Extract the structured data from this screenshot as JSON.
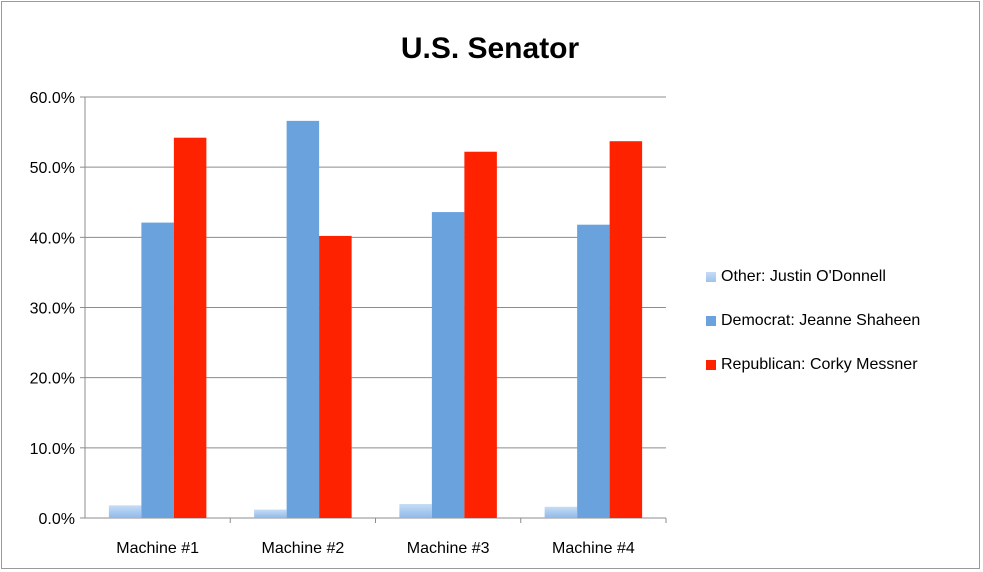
{
  "chart_data": {
    "type": "bar",
    "title": "U.S. Senator",
    "categories": [
      "Machine #1",
      "Machine #2",
      "Machine #3",
      "Machine #4"
    ],
    "series": [
      {
        "name": "Other: Justin O'Donnell",
        "values": [
          1.8,
          1.2,
          2.0,
          1.6
        ],
        "color": "#9dc3ee"
      },
      {
        "name": "Democrat: Jeanne Shaheen",
        "values": [
          42.1,
          56.6,
          43.6,
          41.8
        ],
        "color": "#6aa2de"
      },
      {
        "name": "Republican: Corky Messner",
        "values": [
          54.2,
          40.2,
          52.2,
          53.7
        ],
        "color": "#ff2200"
      }
    ],
    "ylim": [
      0,
      60
    ],
    "yticks": [
      "0.0%",
      "10.0%",
      "20.0%",
      "30.0%",
      "40.0%",
      "50.0%",
      "60.0%"
    ],
    "ytick_values": [
      0,
      10,
      20,
      30,
      40,
      50,
      60
    ],
    "grid": true,
    "legend_position": "right"
  }
}
